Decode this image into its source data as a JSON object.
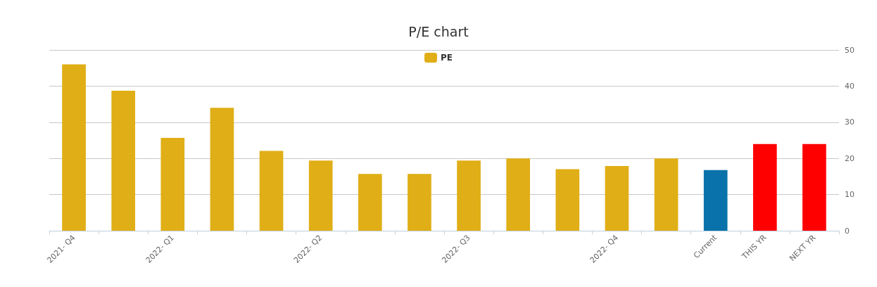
{
  "chart_data": {
    "type": "bar",
    "title": "P/E chart",
    "categories": [
      "2021- Q4",
      null,
      "2022- Q1",
      null,
      null,
      "2022- Q2",
      null,
      null,
      "2022- Q3",
      null,
      null,
      "2022- Q4",
      null,
      "Current",
      "THIS YR",
      "NEXT YR"
    ],
    "series": [
      {
        "name": "PE",
        "color": "#e0ae16",
        "values": [
          46,
          38.7,
          25.7,
          34,
          22.1,
          19.4,
          15.7,
          15.7,
          19.4,
          20,
          17,
          17.9,
          20,
          16.8,
          24,
          24
        ],
        "colors": [
          "#e0ae16",
          "#e0ae16",
          "#e0ae16",
          "#e0ae16",
          "#e0ae16",
          "#e0ae16",
          "#e0ae16",
          "#e0ae16",
          "#e0ae16",
          "#e0ae16",
          "#e0ae16",
          "#e0ae16",
          "#e0ae16",
          "#0a72aa",
          "#ff0000",
          "#ff0000"
        ]
      }
    ],
    "ylim": [
      0,
      50
    ],
    "yticks": [
      0,
      10,
      20,
      30,
      40,
      50
    ],
    "grid": "y",
    "legend": "top"
  }
}
